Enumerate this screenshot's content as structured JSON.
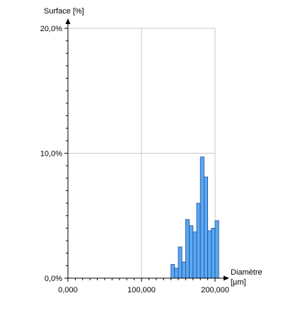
{
  "chart_data": {
    "type": "bar",
    "ylabel": "Surface [%]",
    "xlabel": "Diamètre",
    "xunit": "[µm]",
    "xlim": [
      0,
      200
    ],
    "ylim": [
      0,
      20
    ],
    "x_ticks": [
      0,
      100,
      200
    ],
    "x_tick_labels": [
      "0,000",
      "100,000",
      "200,000"
    ],
    "y_ticks": [
      0,
      10,
      20
    ],
    "y_tick_labels": [
      "0,0%",
      "10,0%",
      "20,0%"
    ],
    "grid": true,
    "bar_color": "#5aa7f5",
    "bar_edge_color": "#1f4f8f",
    "bins": [
      {
        "x0": 140,
        "x1": 145,
        "value": 1.1
      },
      {
        "x0": 145,
        "x1": 150,
        "value": 0.8
      },
      {
        "x0": 150,
        "x1": 155,
        "value": 2.5
      },
      {
        "x0": 155,
        "x1": 160,
        "value": 1.3
      },
      {
        "x0": 160,
        "x1": 165,
        "value": 4.7
      },
      {
        "x0": 165,
        "x1": 170,
        "value": 4.2
      },
      {
        "x0": 170,
        "x1": 175,
        "value": 3.7
      },
      {
        "x0": 175,
        "x1": 180,
        "value": 6.0
      },
      {
        "x0": 180,
        "x1": 185,
        "value": 9.7
      },
      {
        "x0": 185,
        "x1": 190,
        "value": 8.1
      },
      {
        "x0": 190,
        "x1": 195,
        "value": 3.8
      },
      {
        "x0": 195,
        "x1": 200,
        "value": 4.0
      },
      {
        "x0": 200,
        "x1": 205,
        "value": 4.6
      }
    ]
  }
}
